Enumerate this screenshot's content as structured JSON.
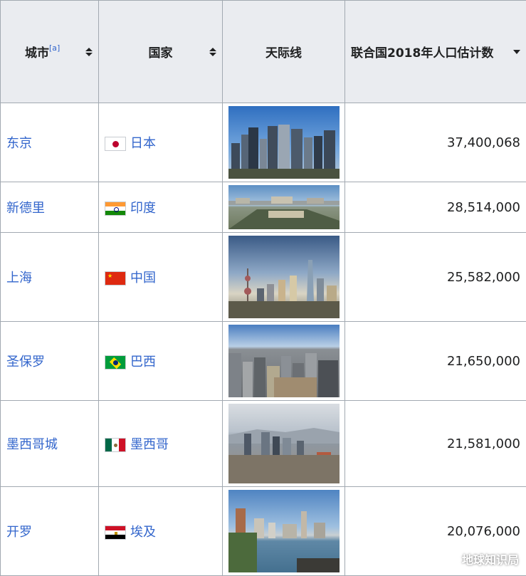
{
  "header": {
    "city_label": "城市",
    "city_note": "[a]",
    "country_label": "国家",
    "skyline_label": "天际线",
    "population_label": "联合国2018年人口估计数"
  },
  "rows": [
    {
      "city": "东京",
      "country": "日本",
      "flag_icon": "japan-flag",
      "population": "37,400,068"
    },
    {
      "city": "新德里",
      "country": "印度",
      "flag_icon": "india-flag",
      "population": "28,514,000"
    },
    {
      "city": "上海",
      "country": "中国",
      "flag_icon": "china-flag",
      "population": "25,582,000"
    },
    {
      "city": "圣保罗",
      "country": "巴西",
      "flag_icon": "brazil-flag",
      "population": "21,650,000"
    },
    {
      "city": "墨西哥城",
      "country": "墨西哥",
      "flag_icon": "mexico-flag",
      "population": "21,581,000"
    },
    {
      "city": "开罗",
      "country": "埃及",
      "flag_icon": "egypt-flag",
      "population": "20,076,000"
    }
  ],
  "watermark": {
    "text": "地球知识局",
    "icon": "wechat-icon"
  },
  "colors": {
    "link": "#3366cc",
    "header_bg": "#eaecf0",
    "border": "#a2a9b1"
  }
}
